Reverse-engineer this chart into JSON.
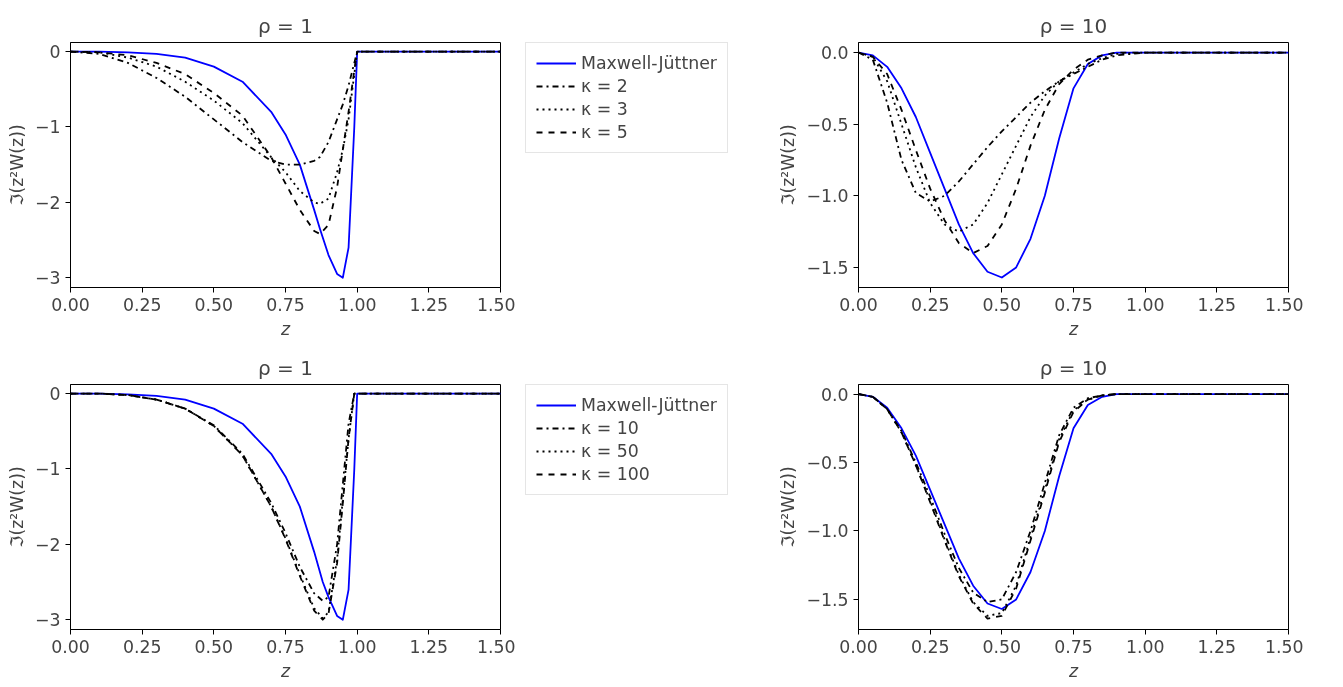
{
  "chart_data": [
    {
      "type": "line",
      "title": "ρ = 1",
      "xlabel": "z",
      "ylabel": "ℑ(z²W(z))",
      "legend": "right",
      "grid": false,
      "x": [
        0,
        0.1,
        0.2,
        0.3,
        0.4,
        0.5,
        0.6,
        0.7,
        0.75,
        0.8,
        0.85,
        0.87,
        0.9,
        0.93,
        0.95,
        0.97,
        0.99,
        1.0,
        1.25,
        1.5
      ],
      "xlim": [
        0,
        1.5
      ],
      "xticks": [
        {
          "value": 0,
          "label": "0.00"
        },
        {
          "value": 0.25,
          "label": "0.25"
        },
        {
          "value": 0.5,
          "label": "0.50"
        },
        {
          "value": 0.75,
          "label": "0.75"
        },
        {
          "value": 1.0,
          "label": "1.00"
        },
        {
          "value": 1.25,
          "label": "1.25"
        },
        {
          "value": 1.5,
          "label": "1.50"
        }
      ],
      "ylim": [
        -3.13,
        0.12
      ],
      "yticks": [
        {
          "value": -3,
          "label": "−3"
        },
        {
          "value": -2,
          "label": "−2"
        },
        {
          "value": -1,
          "label": "−1"
        },
        0
      ],
      "series": [
        {
          "name": "Maxwell-Jüttner",
          "color": "#0000ff",
          "line_style": "solid",
          "values": [
            0,
            0,
            -0.01,
            -0.03,
            -0.08,
            -0.2,
            -0.4,
            -0.8,
            -1.1,
            -1.5,
            -2.1,
            -2.35,
            -2.7,
            -2.95,
            -3.0,
            -2.6,
            -1.0,
            0,
            0,
            0
          ]
        },
        {
          "name": "κ = 2",
          "color": "#000000",
          "line_style": "dashdot",
          "values": [
            0,
            -0.03,
            -0.15,
            -0.35,
            -0.6,
            -0.9,
            -1.2,
            -1.45,
            -1.5,
            -1.5,
            -1.45,
            -1.4,
            -1.2,
            -0.9,
            -0.7,
            -0.45,
            -0.15,
            0,
            0,
            0
          ]
        },
        {
          "name": "κ = 3",
          "color": "#000000",
          "line_style": "dotted",
          "values": [
            0,
            -0.01,
            -0.08,
            -0.2,
            -0.4,
            -0.65,
            -0.95,
            -1.4,
            -1.6,
            -1.85,
            -2.0,
            -2.02,
            -1.95,
            -1.6,
            -1.3,
            -0.9,
            -0.3,
            0,
            0,
            0
          ]
        },
        {
          "name": "κ = 5",
          "color": "#000000",
          "line_style": "dashed",
          "values": [
            0,
            -0.01,
            -0.05,
            -0.15,
            -0.3,
            -0.55,
            -0.85,
            -1.4,
            -1.75,
            -2.1,
            -2.38,
            -2.42,
            -2.3,
            -1.8,
            -1.3,
            -0.8,
            -0.25,
            0,
            0,
            0
          ]
        }
      ]
    },
    {
      "type": "line",
      "title": "ρ = 10",
      "xlabel": "z",
      "ylabel": "ℑ(z²W(z))",
      "grid": false,
      "x": [
        0,
        0.05,
        0.1,
        0.15,
        0.2,
        0.25,
        0.3,
        0.35,
        0.4,
        0.45,
        0.5,
        0.55,
        0.6,
        0.65,
        0.7,
        0.75,
        0.8,
        0.85,
        0.9,
        1.0,
        1.25,
        1.5
      ],
      "xlim": [
        0,
        1.5
      ],
      "xticks": [
        {
          "value": 0,
          "label": "0.00"
        },
        {
          "value": 0.25,
          "label": "0.25"
        },
        {
          "value": 0.5,
          "label": "0.50"
        },
        {
          "value": 0.75,
          "label": "0.75"
        },
        {
          "value": 1.0,
          "label": "1.00"
        },
        {
          "value": 1.25,
          "label": "1.25"
        },
        {
          "value": 1.5,
          "label": "1.50"
        }
      ],
      "ylim": [
        -1.64,
        0.07
      ],
      "yticks": [
        {
          "value": -1.5,
          "label": "−1.5"
        },
        {
          "value": -1.0,
          "label": "−1.0"
        },
        {
          "value": -0.5,
          "label": "−0.5"
        },
        {
          "value": 0,
          "label": "0.0"
        }
      ],
      "series": [
        {
          "color": "#0000ff",
          "line_style": "solid",
          "values": [
            0,
            -0.02,
            -0.1,
            -0.25,
            -0.45,
            -0.7,
            -0.95,
            -1.2,
            -1.4,
            -1.53,
            -1.57,
            -1.5,
            -1.3,
            -1.0,
            -0.6,
            -0.25,
            -0.08,
            -0.02,
            0,
            0,
            0,
            0
          ]
        },
        {
          "color": "#000000",
          "line_style": "dashdot",
          "values": [
            0,
            -0.05,
            -0.35,
            -0.75,
            -0.98,
            -1.04,
            -1.0,
            -0.9,
            -0.78,
            -0.66,
            -0.55,
            -0.45,
            -0.35,
            -0.27,
            -0.2,
            -0.15,
            -0.1,
            -0.05,
            -0.02,
            0,
            0,
            0
          ]
        },
        {
          "color": "#000000",
          "line_style": "dotted",
          "values": [
            0,
            -0.03,
            -0.2,
            -0.5,
            -0.8,
            -1.05,
            -1.2,
            -1.25,
            -1.2,
            -1.05,
            -0.85,
            -0.65,
            -0.45,
            -0.3,
            -0.2,
            -0.14,
            -0.08,
            -0.04,
            -0.01,
            0,
            0,
            0
          ]
        },
        {
          "color": "#000000",
          "line_style": "dashed",
          "values": [
            0,
            -0.03,
            -0.15,
            -0.4,
            -0.68,
            -0.95,
            -1.17,
            -1.33,
            -1.4,
            -1.35,
            -1.2,
            -0.95,
            -0.65,
            -0.4,
            -0.22,
            -0.12,
            -0.05,
            -0.02,
            0,
            0,
            0,
            0
          ]
        }
      ]
    },
    {
      "type": "line",
      "title": "ρ = 1",
      "xlabel": "z",
      "ylabel": "ℑ(z²W(z))",
      "legend": "right",
      "grid": false,
      "x": [
        0,
        0.1,
        0.2,
        0.3,
        0.4,
        0.5,
        0.6,
        0.7,
        0.75,
        0.8,
        0.85,
        0.88,
        0.9,
        0.93,
        0.95,
        0.97,
        0.99,
        1.0,
        1.25,
        1.5
      ],
      "xlim": [
        0,
        1.5
      ],
      "xticks": [
        {
          "value": 0,
          "label": "0.00"
        },
        {
          "value": 0.25,
          "label": "0.25"
        },
        {
          "value": 0.5,
          "label": "0.50"
        },
        {
          "value": 0.75,
          "label": "0.75"
        },
        {
          "value": 1.0,
          "label": "1.00"
        },
        {
          "value": 1.25,
          "label": "1.25"
        },
        {
          "value": 1.5,
          "label": "1.50"
        }
      ],
      "ylim": [
        -3.13,
        0.12
      ],
      "yticks": [
        {
          "value": -3,
          "label": "−3"
        },
        {
          "value": -2,
          "label": "−2"
        },
        {
          "value": -1,
          "label": "−1"
        },
        0
      ],
      "series": [
        {
          "name": "Maxwell-Jüttner",
          "color": "#0000ff",
          "line_style": "solid",
          "values": [
            0,
            0,
            -0.01,
            -0.03,
            -0.08,
            -0.2,
            -0.4,
            -0.8,
            -1.1,
            -1.5,
            -2.1,
            -2.5,
            -2.7,
            -2.95,
            -3.0,
            -2.6,
            -1.0,
            0,
            0,
            0
          ]
        },
        {
          "name": "κ = 10",
          "color": "#000000",
          "line_style": "dashdot",
          "values": [
            0,
            0,
            -0.02,
            -0.08,
            -0.2,
            -0.42,
            -0.8,
            -1.45,
            -1.85,
            -2.3,
            -2.65,
            -2.75,
            -2.7,
            -2.0,
            -1.2,
            -0.4,
            0,
            0,
            0,
            0
          ]
        },
        {
          "name": "κ = 50",
          "color": "#000000",
          "line_style": "dotted",
          "values": [
            0,
            0,
            -0.02,
            -0.08,
            -0.2,
            -0.43,
            -0.82,
            -1.5,
            -1.92,
            -2.4,
            -2.85,
            -2.98,
            -2.9,
            -2.2,
            -1.4,
            -0.6,
            0,
            0,
            0,
            0
          ]
        },
        {
          "name": "κ = 100",
          "color": "#000000",
          "line_style": "dashed",
          "values": [
            0,
            0,
            -0.02,
            -0.08,
            -0.2,
            -0.43,
            -0.82,
            -1.5,
            -1.93,
            -2.42,
            -2.88,
            -3.0,
            -2.92,
            -2.25,
            -1.45,
            -0.6,
            0,
            0,
            0,
            0
          ]
        }
      ]
    },
    {
      "type": "line",
      "title": "ρ = 10",
      "xlabel": "z",
      "ylabel": "ℑ(z²W(z))",
      "grid": false,
      "x": [
        0,
        0.05,
        0.1,
        0.15,
        0.2,
        0.25,
        0.3,
        0.35,
        0.4,
        0.45,
        0.5,
        0.55,
        0.6,
        0.65,
        0.7,
        0.75,
        0.8,
        0.85,
        0.9,
        1.0,
        1.25,
        1.5
      ],
      "xlim": [
        0,
        1.5
      ],
      "xticks": [
        {
          "value": 0,
          "label": "0.00"
        },
        {
          "value": 0.25,
          "label": "0.25"
        },
        {
          "value": 0.5,
          "label": "0.50"
        },
        {
          "value": 0.75,
          "label": "0.75"
        },
        {
          "value": 1.0,
          "label": "1.00"
        },
        {
          "value": 1.25,
          "label": "1.25"
        },
        {
          "value": 1.5,
          "label": "1.50"
        }
      ],
      "ylim": [
        -1.72,
        0.07
      ],
      "yticks": [
        {
          "value": -1.5,
          "label": "−1.5"
        },
        {
          "value": -1.0,
          "label": "−1.0"
        },
        {
          "value": -0.5,
          "label": "−0.5"
        },
        {
          "value": 0,
          "label": "0.0"
        }
      ],
      "series": [
        {
          "color": "#0000ff",
          "line_style": "solid",
          "values": [
            0,
            -0.02,
            -0.1,
            -0.25,
            -0.45,
            -0.7,
            -0.95,
            -1.2,
            -1.4,
            -1.53,
            -1.57,
            -1.5,
            -1.3,
            -1.0,
            -0.6,
            -0.25,
            -0.08,
            -0.02,
            0,
            0,
            0,
            0
          ]
        },
        {
          "color": "#000000",
          "line_style": "dashdot",
          "values": [
            0,
            -0.02,
            -0.11,
            -0.27,
            -0.5,
            -0.75,
            -1.02,
            -1.27,
            -1.45,
            -1.52,
            -1.5,
            -1.3,
            -1.0,
            -0.65,
            -0.3,
            -0.1,
            -0.03,
            -0.01,
            0,
            0,
            0,
            0
          ]
        },
        {
          "color": "#000000",
          "line_style": "dotted",
          "values": [
            0,
            -0.02,
            -0.11,
            -0.28,
            -0.52,
            -0.78,
            -1.06,
            -1.32,
            -1.52,
            -1.62,
            -1.6,
            -1.4,
            -1.05,
            -0.7,
            -0.33,
            -0.12,
            -0.04,
            -0.01,
            0,
            0,
            0,
            0
          ]
        },
        {
          "color": "#000000",
          "line_style": "dashed",
          "values": [
            0,
            -0.02,
            -0.11,
            -0.28,
            -0.52,
            -0.79,
            -1.07,
            -1.33,
            -1.53,
            -1.64,
            -1.62,
            -1.42,
            -1.07,
            -0.72,
            -0.35,
            -0.13,
            -0.04,
            -0.01,
            0,
            0,
            0,
            0
          ]
        }
      ]
    }
  ]
}
